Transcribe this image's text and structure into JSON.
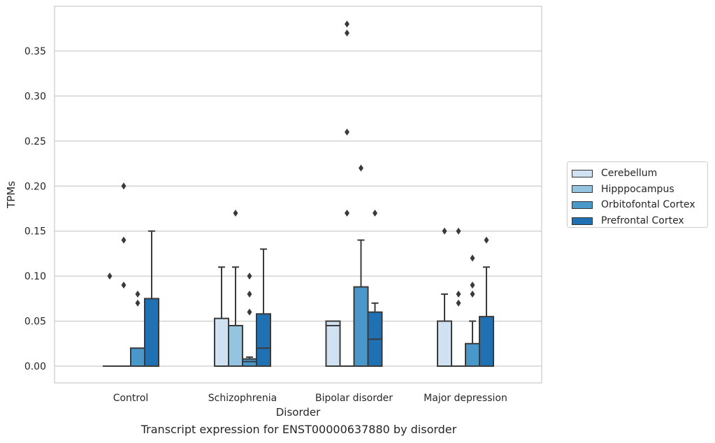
{
  "chart_data": {
    "type": "box",
    "caption": "Transcript expression for ENST00000637880 by disorder",
    "xlabel": "Disorder",
    "ylabel": "TPMs",
    "categories": [
      "Control",
      "Schizophrenia",
      "Bipolar disorder",
      "Major depression"
    ],
    "yticks": [
      "0.00",
      "0.05",
      "0.10",
      "0.15",
      "0.20",
      "0.25",
      "0.30",
      "0.35"
    ],
    "ylim": [
      -0.018,
      0.398
    ],
    "grid": "horizontal",
    "legend_position": "right",
    "series": [
      {
        "name": "Cerebellum",
        "color": "#d0e1f2",
        "boxes": [
          {
            "q1": 0.0,
            "median": 0.0,
            "q3": 0.0,
            "whisker_low": 0.0,
            "whisker_high": 0.0,
            "outliers": [
              0.1
            ]
          },
          {
            "q1": 0.0,
            "median": 0.0,
            "q3": 0.053,
            "whisker_low": 0.0,
            "whisker_high": 0.11,
            "outliers": []
          },
          {
            "q1": 0.0,
            "median": 0.045,
            "q3": 0.05,
            "whisker_low": 0.0,
            "whisker_high": 0.05,
            "outliers": []
          },
          {
            "q1": 0.0,
            "median": 0.0,
            "q3": 0.05,
            "whisker_low": 0.0,
            "whisker_high": 0.08,
            "outliers": [
              0.15
            ]
          }
        ]
      },
      {
        "name": "Hipppocampus",
        "color": "#94c4df",
        "boxes": [
          {
            "q1": 0.0,
            "median": 0.0,
            "q3": 0.0,
            "whisker_low": 0.0,
            "whisker_high": 0.0,
            "outliers": [
              0.09,
              0.14,
              0.2
            ]
          },
          {
            "q1": 0.0,
            "median": 0.0,
            "q3": 0.045,
            "whisker_low": 0.0,
            "whisker_high": 0.11,
            "outliers": [
              0.17
            ]
          },
          {
            "q1": 0.0,
            "median": 0.0,
            "q3": 0.0,
            "whisker_low": 0.0,
            "whisker_high": 0.0,
            "outliers": [
              0.17,
              0.26,
              0.37,
              0.38
            ]
          },
          {
            "q1": 0.0,
            "median": 0.0,
            "q3": 0.0,
            "whisker_low": 0.0,
            "whisker_high": 0.0,
            "outliers": [
              0.07,
              0.08,
              0.15
            ]
          }
        ]
      },
      {
        "name": "Orbitofontal Cortex",
        "color": "#4a98c9",
        "boxes": [
          {
            "q1": 0.0,
            "median": 0.0,
            "q3": 0.02,
            "whisker_low": 0.0,
            "whisker_high": 0.02,
            "outliers": [
              0.07,
              0.08
            ]
          },
          {
            "q1": 0.0,
            "median": 0.005,
            "q3": 0.008,
            "whisker_low": 0.0,
            "whisker_high": 0.01,
            "outliers": [
              0.06,
              0.08,
              0.1
            ]
          },
          {
            "q1": 0.0,
            "median": 0.0,
            "q3": 0.088,
            "whisker_low": 0.0,
            "whisker_high": 0.14,
            "outliers": [
              0.22
            ]
          },
          {
            "q1": 0.0,
            "median": 0.0,
            "q3": 0.025,
            "whisker_low": 0.0,
            "whisker_high": 0.05,
            "outliers": [
              0.08,
              0.09,
              0.12
            ]
          }
        ]
      },
      {
        "name": "Prefrontal Cortex",
        "color": "#2070b4",
        "boxes": [
          {
            "q1": 0.0,
            "median": 0.0,
            "q3": 0.075,
            "whisker_low": 0.0,
            "whisker_high": 0.15,
            "outliers": []
          },
          {
            "q1": 0.0,
            "median": 0.02,
            "q3": 0.058,
            "whisker_low": 0.0,
            "whisker_high": 0.13,
            "outliers": []
          },
          {
            "q1": 0.0,
            "median": 0.03,
            "q3": 0.06,
            "whisker_low": 0.0,
            "whisker_high": 0.07,
            "outliers": [
              0.17
            ]
          },
          {
            "q1": 0.0,
            "median": 0.0,
            "q3": 0.055,
            "whisker_low": 0.0,
            "whisker_high": 0.11,
            "outliers": [
              0.14
            ]
          }
        ]
      }
    ]
  }
}
